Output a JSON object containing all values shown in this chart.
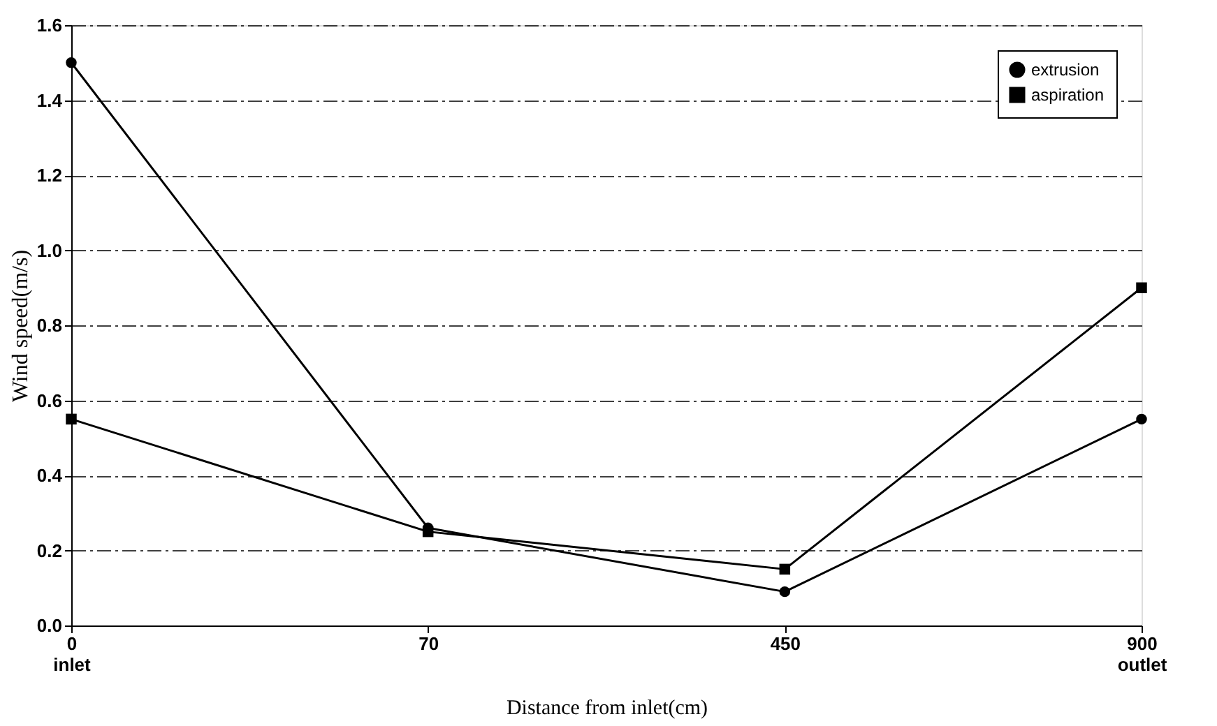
{
  "chart_data": {
    "type": "line",
    "xlabel": "Distance from inlet(cm)",
    "ylabel": "Wind speed(m/s)",
    "categories": [
      "0\ninlet",
      "70",
      "450",
      "900\noutlet"
    ],
    "series": [
      {
        "name": "extrusion",
        "color": "#000000",
        "marker": "circle",
        "values": [
          1.5,
          0.26,
          0.09,
          0.55
        ]
      },
      {
        "name": "aspiration",
        "color": "#000000",
        "marker": "square",
        "values": [
          0.55,
          0.25,
          0.15,
          0.9
        ]
      }
    ],
    "ylim": [
      0,
      1.6
    ],
    "yticks": [
      {
        "value": 0,
        "label": "0.0"
      },
      {
        "value": 0.2,
        "label": "0.2"
      },
      {
        "value": 0.4,
        "label": "0.4"
      },
      {
        "value": 0.6,
        "label": "0.6"
      },
      {
        "value": 0.8,
        "label": "0.8"
      },
      {
        "value": 1.0,
        "label": "1.0"
      },
      {
        "value": 1.2,
        "label": "1.2"
      },
      {
        "value": 1.4,
        "label": "1.4"
      },
      {
        "value": 1.6,
        "label": "1.6"
      }
    ],
    "grid": "y",
    "legend": "top right",
    "line_style": "solid"
  }
}
